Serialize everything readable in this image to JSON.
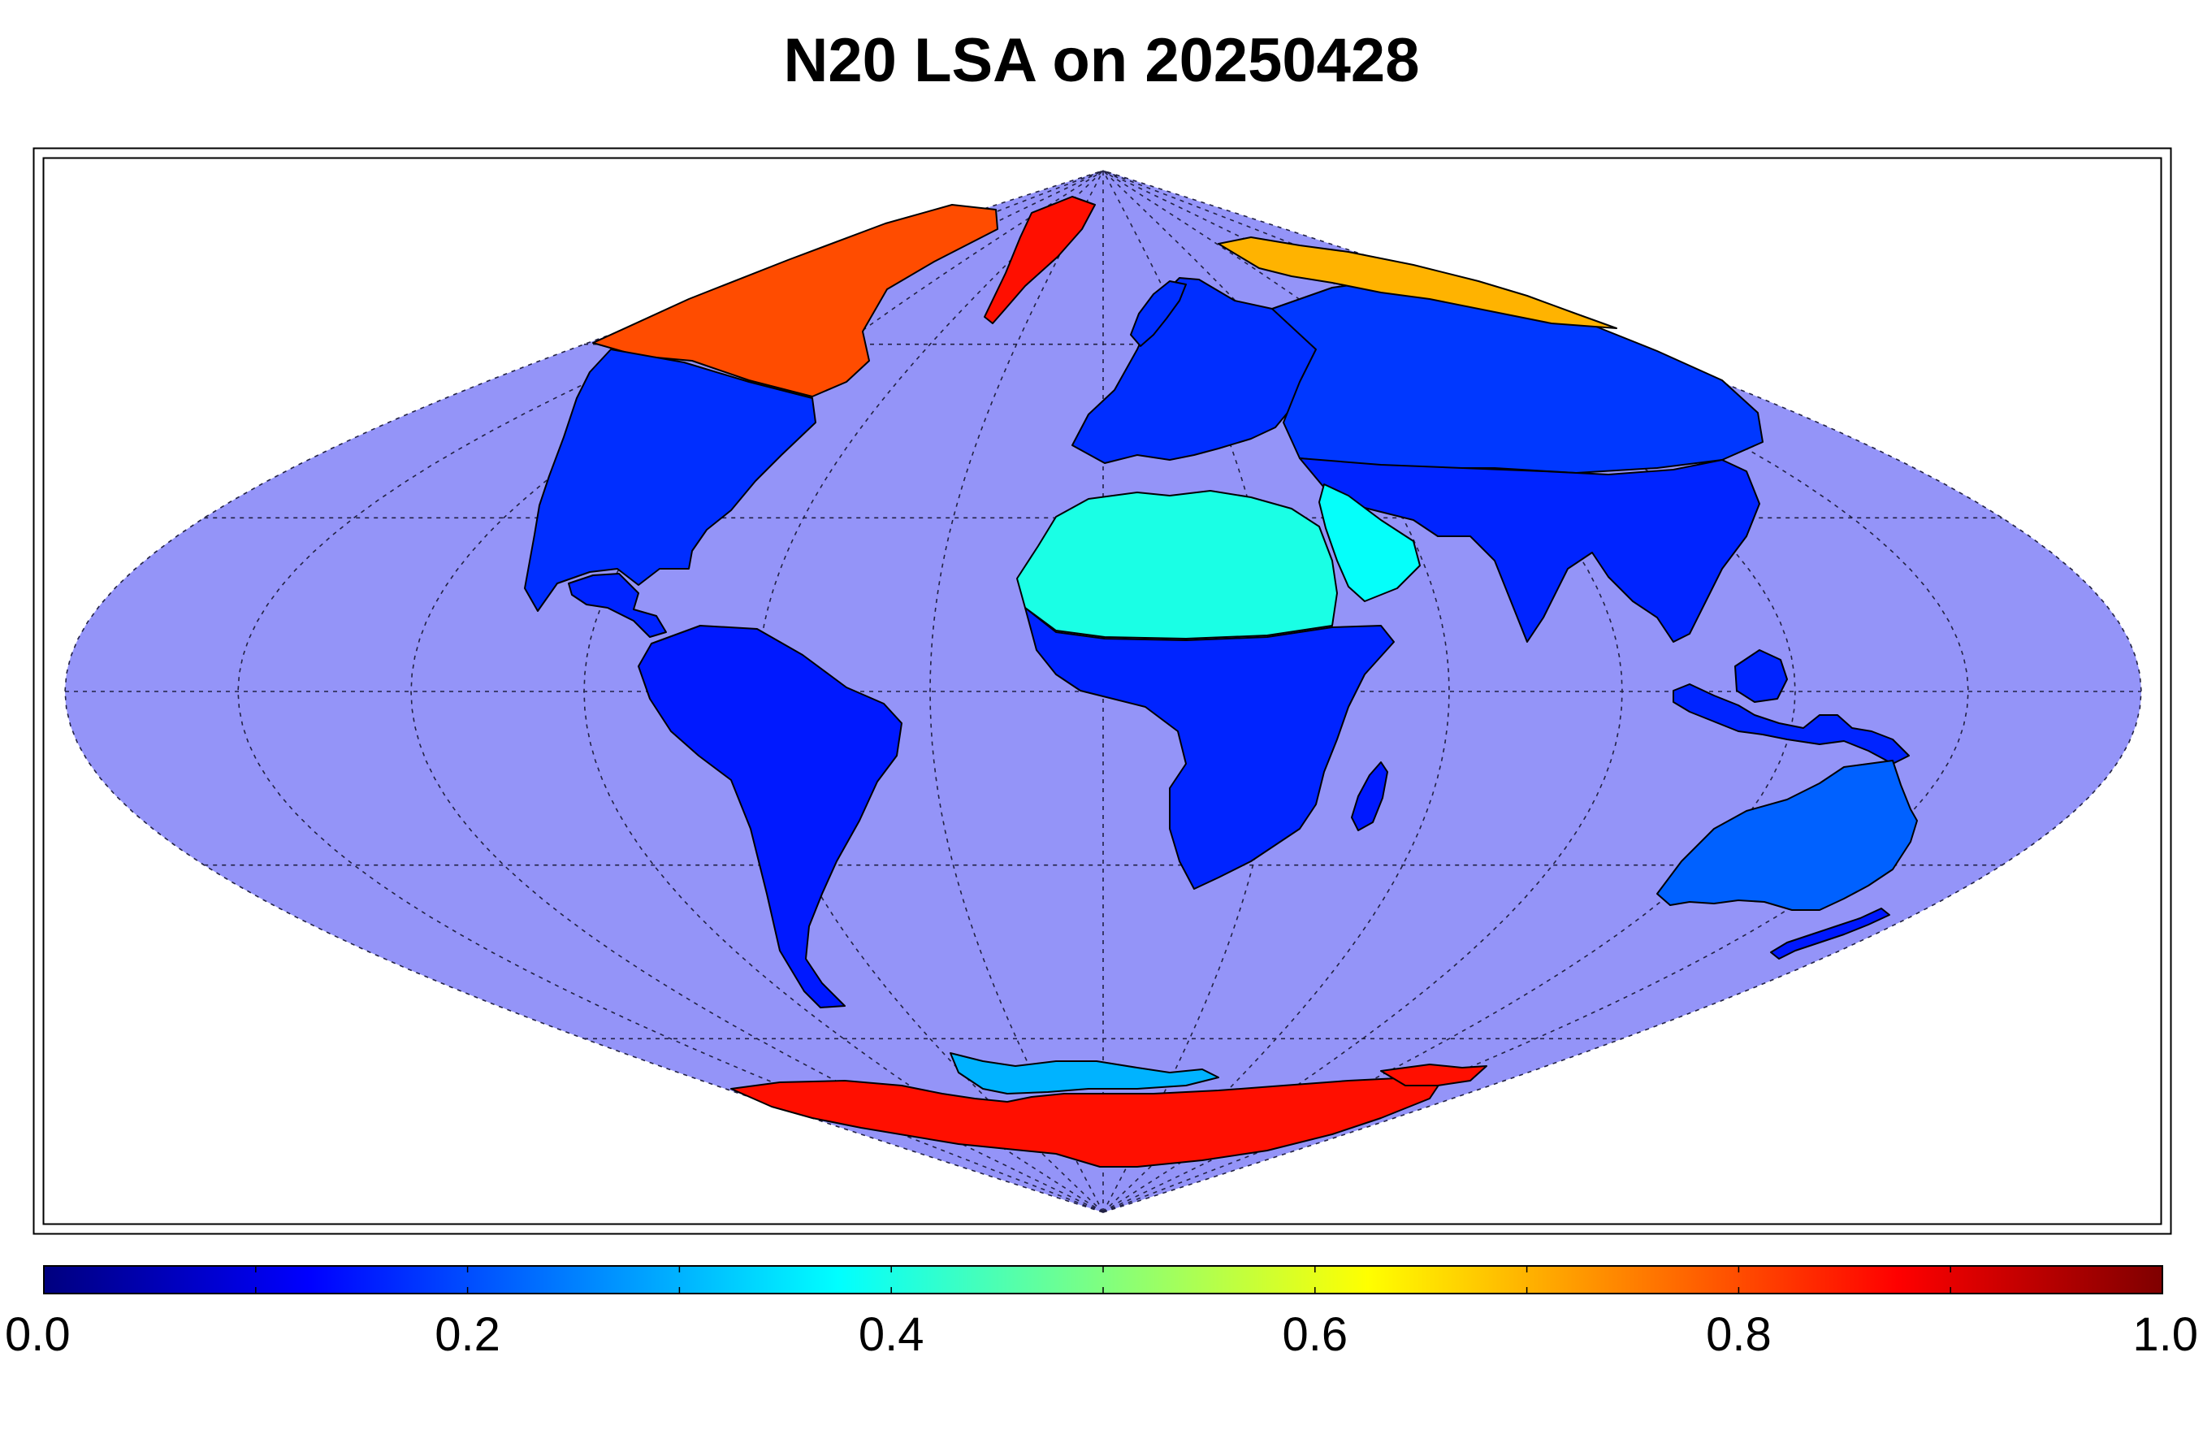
{
  "title": "N20 LSA on 20250428",
  "colors": {
    "ocean": "#9494f8",
    "background": "#ffffff",
    "frame": "#000000",
    "coastline": "#000000",
    "graticule": "#222244"
  },
  "map": {
    "projection": "sinusoidal",
    "graticule": "dotted",
    "parallels_deg": [
      -60,
      -30,
      0,
      30,
      60
    ],
    "meridians_deg": [
      -180,
      -150,
      -120,
      -90,
      -60,
      -30,
      0,
      30,
      60,
      90,
      120,
      150,
      180
    ]
  },
  "colorbar": {
    "colormap": "jet",
    "range": [
      0.0,
      1.0
    ],
    "ticks": [
      "0.0",
      "0.2",
      "0.4",
      "0.6",
      "0.8",
      "1.0"
    ],
    "tick_values": [
      0.0,
      0.2,
      0.4,
      0.6,
      0.8,
      1.0
    ],
    "minor_tick_values": [
      0.1,
      0.3,
      0.5,
      0.7,
      0.9
    ]
  },
  "regions": [
    {
      "name": "greenland",
      "level": 0.86
    },
    {
      "name": "arctic-canada",
      "level": 0.8
    },
    {
      "name": "north-america",
      "level": 0.17
    },
    {
      "name": "central-america",
      "level": 0.16
    },
    {
      "name": "south-america",
      "level": 0.15
    },
    {
      "name": "europe",
      "level": 0.17
    },
    {
      "name": "northern-asia",
      "level": 0.18
    },
    {
      "name": "siberia-snow",
      "level": 0.7
    },
    {
      "name": "asia",
      "level": 0.16
    },
    {
      "name": "sahara",
      "level": 0.4
    },
    {
      "name": "arabia",
      "level": 0.38
    },
    {
      "name": "africa",
      "level": 0.16
    },
    {
      "name": "madagascar",
      "level": 0.15
    },
    {
      "name": "indonesia",
      "level": 0.16
    },
    {
      "name": "australia",
      "level": 0.22
    },
    {
      "name": "new-zealand",
      "level": 0.15
    },
    {
      "name": "antarctica",
      "level": 0.86
    },
    {
      "name": "antarctic-peninsula",
      "level": 0.3
    }
  ]
}
